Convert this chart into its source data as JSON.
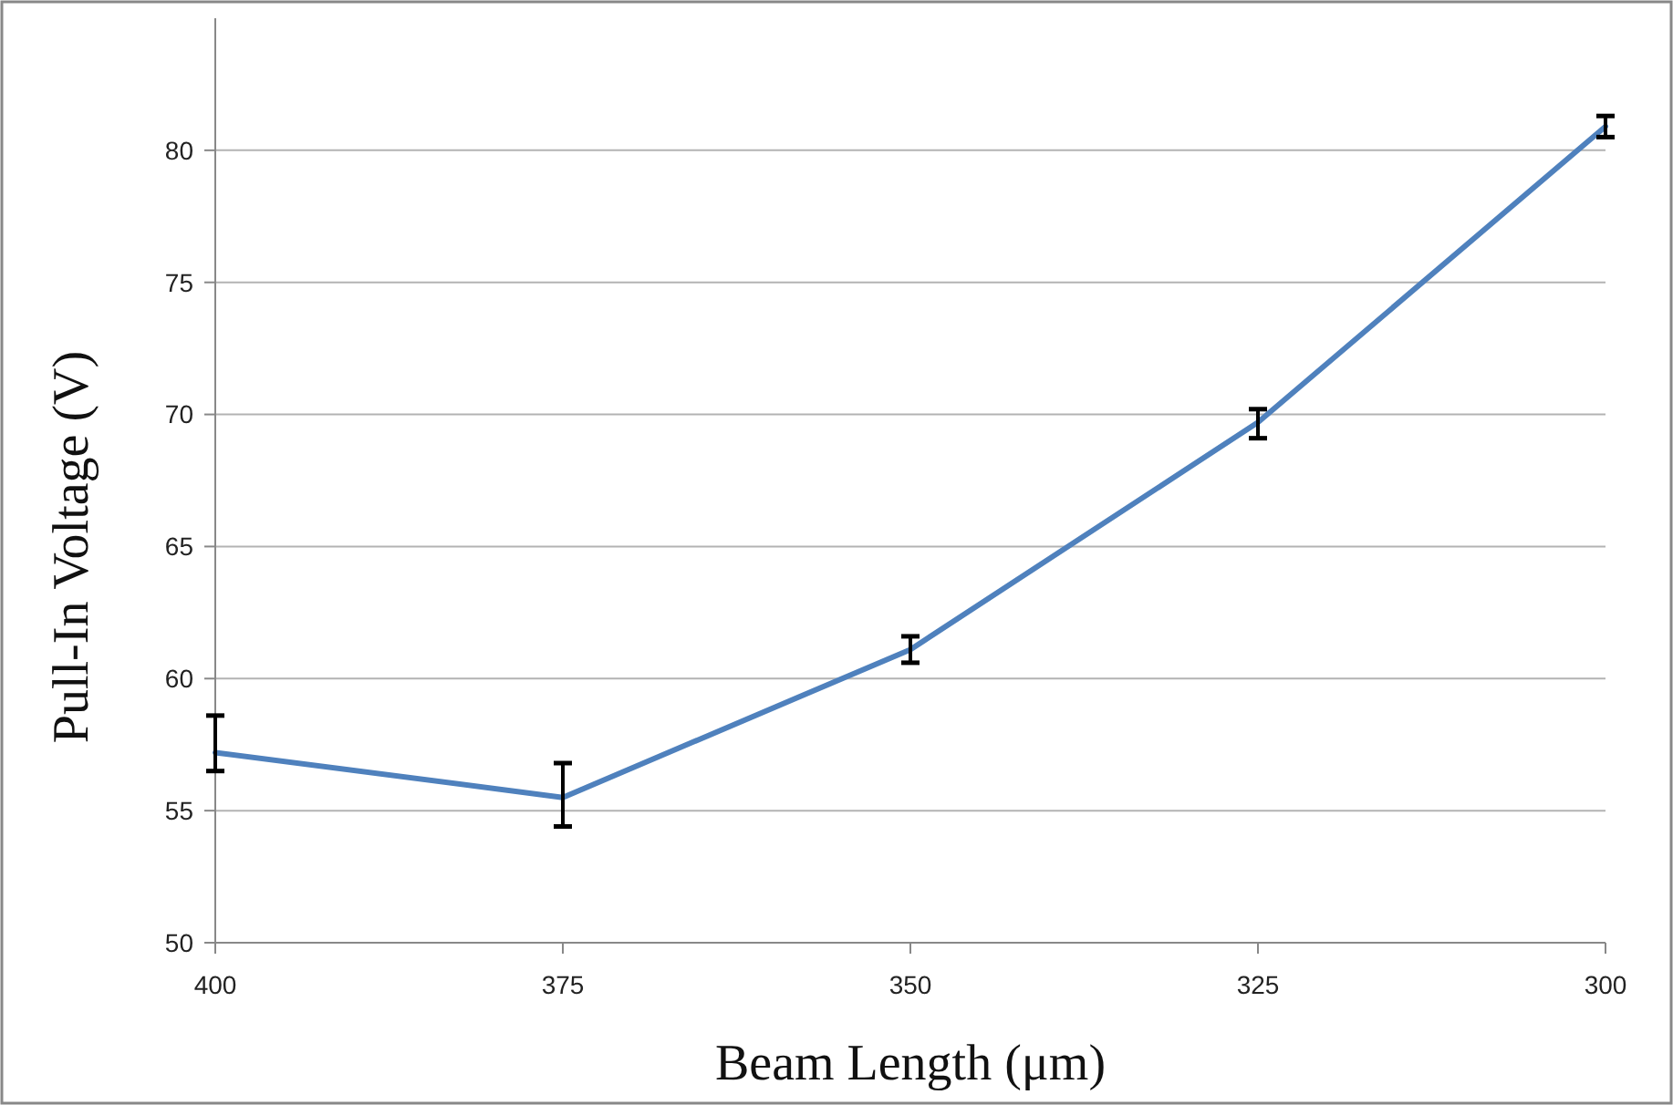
{
  "chart_data": {
    "type": "line",
    "xlabel": "Beam Length (μm)",
    "ylabel": "Pull-In Voltage (V)",
    "x": [
      400,
      375,
      350,
      325,
      300
    ],
    "series": [
      {
        "color": "#4f81bd",
        "values": [
          57.2,
          55.5,
          61.1,
          69.7,
          80.9
        ],
        "errors": [
          [
            56.5,
            58.6
          ],
          [
            54.4,
            56.8
          ],
          [
            60.6,
            61.6
          ],
          [
            69.1,
            70.2
          ],
          [
            80.5,
            81.3
          ]
        ]
      }
    ],
    "xlim": [
      400,
      300
    ],
    "xticks": [
      400,
      375,
      350,
      325,
      300
    ],
    "ylim": [
      50,
      85
    ],
    "yticks": [
      50,
      55,
      60,
      65,
      70,
      75,
      80
    ],
    "grid": "y",
    "marker": "none",
    "line_style": "solid"
  }
}
